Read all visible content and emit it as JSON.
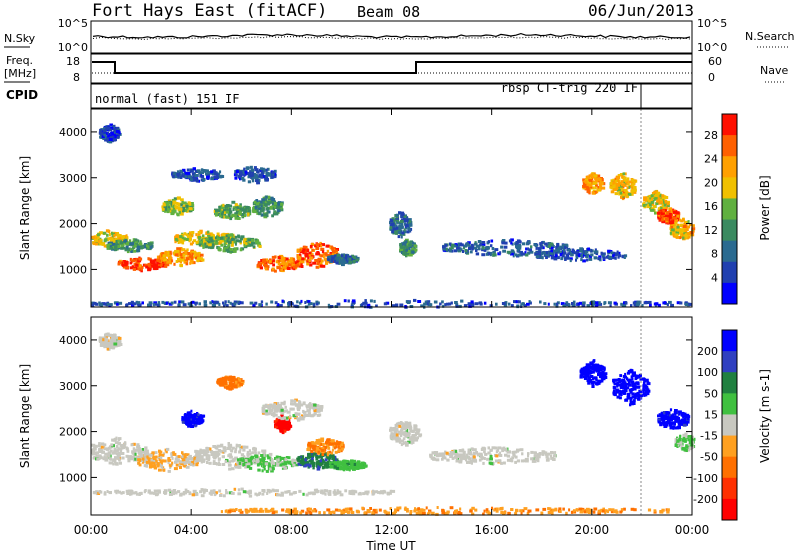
{
  "header": {
    "site": "Fort Hays East (fitACF)",
    "beam": "Beam 08",
    "date": "06/Jun/2013"
  },
  "strips": {
    "nsky_label": "N.Sky",
    "nsearch_label": "N.Search",
    "freq_label_top": "Freq.",
    "freq_label_unit": "[MHz]",
    "nave_label": "Nave",
    "cpid_label": "CPID",
    "noise_ticks_left": [
      "10^5",
      "10^0"
    ],
    "noise_ticks_right": [
      "10^5",
      "10^0"
    ],
    "freq_ticks": [
      "18",
      "8"
    ],
    "nave_ticks": [
      "60",
      "0"
    ],
    "cpid_modes": [
      "normal (fast) 151 IF",
      "rbsp CT-trig 220 IF"
    ]
  },
  "colors": {
    "power_scale": [
      "#0000ff",
      "#2850a0",
      "#409060",
      "#20a020",
      "#90d020",
      "#f0d000",
      "#ffa000",
      "#ff5000",
      "#ff0000"
    ],
    "velocity_scale": [
      "#0000ff",
      "#3040c0",
      "#208040",
      "#40c040",
      "#c8c8c0",
      "#ffa020",
      "#ff7000",
      "#ff3000",
      "#ff0000"
    ]
  },
  "chart_data": [
    {
      "type": "heatmap",
      "title": "Power",
      "xlabel": "",
      "ylabel": "Slant Range [km]",
      "colorbar_label": "Power [dB]",
      "colorbar_ticks": [
        "28",
        "24",
        "20",
        "16",
        "12",
        "8",
        "4"
      ],
      "x_ticks": [
        "00:00",
        "04:00",
        "08:00",
        "12:00",
        "16:00",
        "20:00",
        "00:00"
      ],
      "y_ticks": [
        "4000",
        "3000",
        "2000",
        "1000"
      ],
      "xlim_hours": [
        0,
        24
      ],
      "ylim_km": [
        180,
        4500
      ],
      "clim_db": [
        0,
        30
      ],
      "blobs": [
        {
          "t": 0.6,
          "r": 1700,
          "dt": 0.8,
          "dr": 180,
          "v": 18
        },
        {
          "t": 1.5,
          "r": 1550,
          "dt": 0.9,
          "dr": 160,
          "v": 12
        },
        {
          "t": 2.0,
          "r": 1150,
          "dt": 1.0,
          "dr": 150,
          "v": 27
        },
        {
          "t": 3.5,
          "r": 1300,
          "dt": 0.9,
          "dr": 200,
          "v": 22
        },
        {
          "t": 4.5,
          "r": 1700,
          "dt": 1.2,
          "dr": 200,
          "v": 18
        },
        {
          "t": 5.5,
          "r": 1600,
          "dt": 1.2,
          "dr": 200,
          "v": 14
        },
        {
          "t": 3.4,
          "r": 2400,
          "dt": 0.6,
          "dr": 200,
          "v": 16
        },
        {
          "t": 5.6,
          "r": 2300,
          "dt": 0.7,
          "dr": 200,
          "v": 14
        },
        {
          "t": 7.0,
          "r": 2400,
          "dt": 0.6,
          "dr": 250,
          "v": 12
        },
        {
          "t": 7.5,
          "r": 1150,
          "dt": 0.9,
          "dr": 180,
          "v": 24
        },
        {
          "t": 9.0,
          "r": 1350,
          "dt": 0.8,
          "dr": 300,
          "v": 25
        },
        {
          "t": 10.0,
          "r": 1250,
          "dt": 0.6,
          "dr": 120,
          "v": 8
        },
        {
          "t": 4.2,
          "r": 3100,
          "dt": 1.0,
          "dr": 150,
          "v": 6
        },
        {
          "t": 6.5,
          "r": 3100,
          "dt": 0.8,
          "dr": 200,
          "v": 6
        },
        {
          "t": 0.7,
          "r": 4000,
          "dt": 0.4,
          "dr": 200,
          "v": 5
        },
        {
          "t": 12.3,
          "r": 2000,
          "dt": 0.4,
          "dr": 300,
          "v": 8
        },
        {
          "t": 12.6,
          "r": 1500,
          "dt": 0.3,
          "dr": 200,
          "v": 12
        },
        {
          "t": 16.5,
          "r": 1500,
          "dt": 2.5,
          "dr": 200,
          "v": 7
        },
        {
          "t": 19.5,
          "r": 1350,
          "dt": 1.8,
          "dr": 150,
          "v": 6
        },
        {
          "t": 20.0,
          "r": 2900,
          "dt": 0.4,
          "dr": 250,
          "v": 22
        },
        {
          "t": 21.2,
          "r": 2850,
          "dt": 0.5,
          "dr": 300,
          "v": 20
        },
        {
          "t": 22.5,
          "r": 2500,
          "dt": 0.5,
          "dr": 250,
          "v": 18
        },
        {
          "t": 23.6,
          "r": 1900,
          "dt": 0.5,
          "dr": 250,
          "v": 20
        },
        {
          "t": 23.0,
          "r": 2200,
          "dt": 0.4,
          "dr": 200,
          "v": 26
        },
        {
          "t": 12.0,
          "r": 280,
          "dt": 12.0,
          "dr": 80,
          "v": 6
        }
      ]
    },
    {
      "type": "heatmap",
      "title": "Velocity",
      "xlabel": "Time UT",
      "ylabel": "Slant Range [km]",
      "colorbar_label": "Velocity [m s-1]",
      "colorbar_ticks": [
        "200",
        "100",
        "50",
        "15",
        "-15",
        "-50",
        "-100",
        "-200"
      ],
      "x_ticks": [
        "00:00",
        "04:00",
        "08:00",
        "12:00",
        "16:00",
        "20:00",
        "00:00"
      ],
      "y_ticks": [
        "4000",
        "3000",
        "2000",
        "1000"
      ],
      "xlim_hours": [
        0,
        24
      ],
      "ylim_km": [
        180,
        4500
      ],
      "clim_ms": [
        -250,
        250
      ],
      "blobs": [
        {
          "t": 1.0,
          "r": 1600,
          "dt": 1.2,
          "dr": 300,
          "v": 0
        },
        {
          "t": 3.0,
          "r": 1400,
          "dt": 1.2,
          "dr": 250,
          "v": -30
        },
        {
          "t": 4.0,
          "r": 2300,
          "dt": 0.4,
          "dr": 200,
          "v": 220
        },
        {
          "t": 5.5,
          "r": 1500,
          "dt": 1.4,
          "dr": 300,
          "v": 0
        },
        {
          "t": 5.5,
          "r": 3100,
          "dt": 0.5,
          "dr": 150,
          "v": -100
        },
        {
          "t": 7.6,
          "r": 2200,
          "dt": 0.3,
          "dr": 200,
          "v": -220
        },
        {
          "t": 7.0,
          "r": 1350,
          "dt": 1.2,
          "dr": 200,
          "v": 40
        },
        {
          "t": 9.0,
          "r": 1400,
          "dt": 0.8,
          "dr": 200,
          "v": 120
        },
        {
          "t": 9.3,
          "r": 1700,
          "dt": 0.7,
          "dr": 200,
          "v": -80
        },
        {
          "t": 10.2,
          "r": 1300,
          "dt": 0.7,
          "dr": 120,
          "v": 60
        },
        {
          "t": 8.0,
          "r": 2500,
          "dt": 1.2,
          "dr": 250,
          "v": 0
        },
        {
          "t": 12.5,
          "r": 2000,
          "dt": 0.6,
          "dr": 300,
          "v": 0
        },
        {
          "t": 16.0,
          "r": 1500,
          "dt": 2.5,
          "dr": 200,
          "v": 0
        },
        {
          "t": 20.0,
          "r": 3300,
          "dt": 0.5,
          "dr": 300,
          "v": 230
        },
        {
          "t": 21.5,
          "r": 3000,
          "dt": 0.7,
          "dr": 400,
          "v": 230
        },
        {
          "t": 23.2,
          "r": 2300,
          "dt": 0.6,
          "dr": 250,
          "v": 220
        },
        {
          "t": 23.7,
          "r": 1800,
          "dt": 0.4,
          "dr": 200,
          "v": 30
        },
        {
          "t": 0.7,
          "r": 4000,
          "dt": 0.4,
          "dr": 200,
          "v": 0
        },
        {
          "t": 14.0,
          "r": 300,
          "dt": 9.0,
          "dr": 80,
          "v": -70
        },
        {
          "t": 6.0,
          "r": 700,
          "dt": 6.0,
          "dr": 80,
          "v": 0
        }
      ]
    }
  ]
}
